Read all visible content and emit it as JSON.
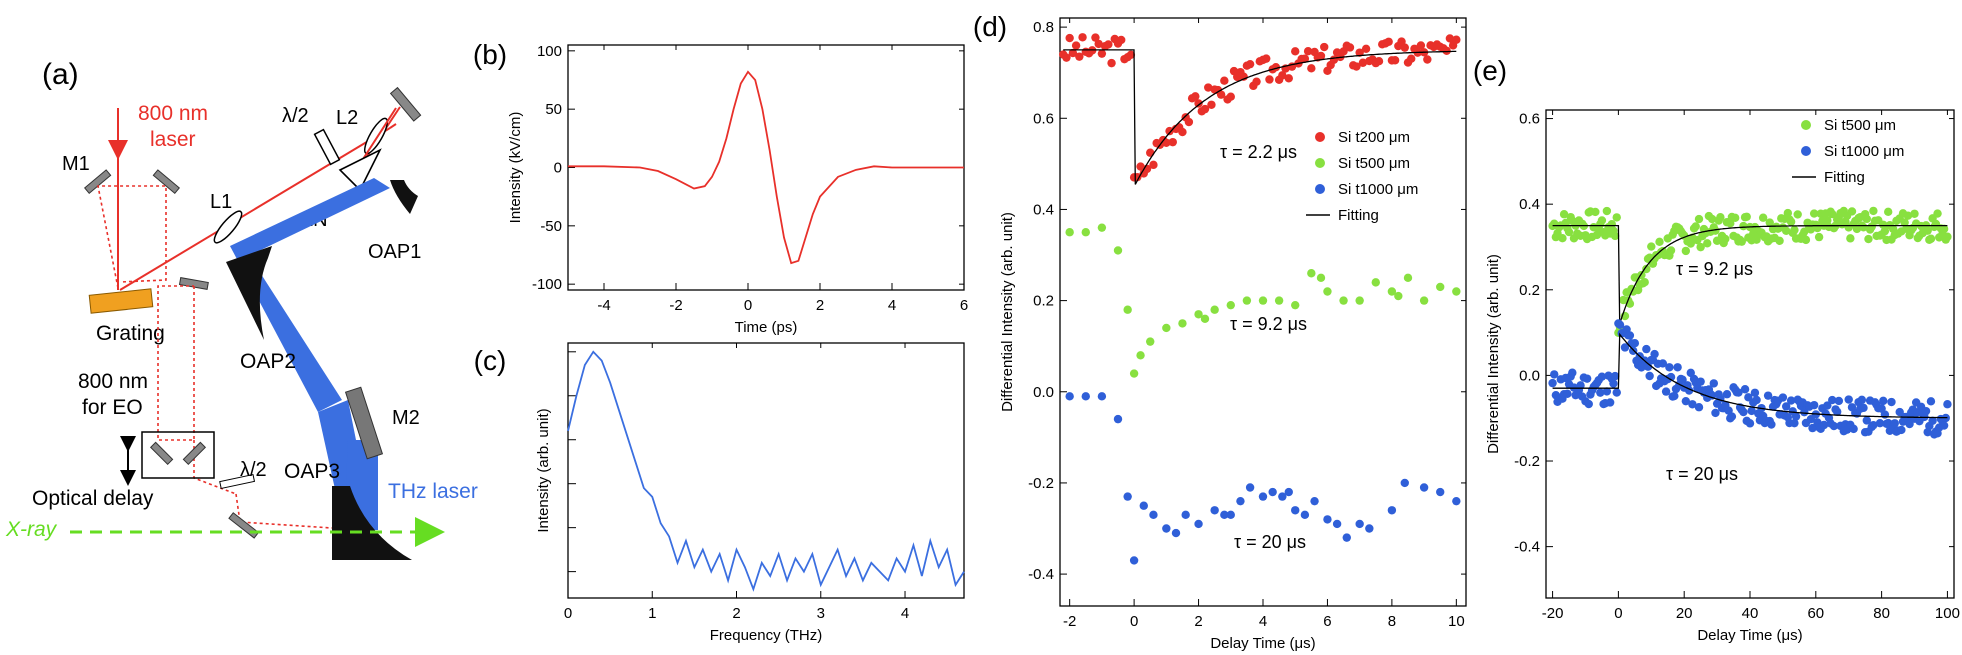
{
  "colors": {
    "laser_red": "#e8302a",
    "thz_blue": "#3b6fe0",
    "xray_green": "#66dd22",
    "si200_red": "#e8302a",
    "si500_green": "#88e040",
    "si1000_blue": "#2f5fd8",
    "fit_black": "#000000"
  },
  "panel_a": {
    "label": "(a)",
    "laser_label_1": "800 nm",
    "laser_label_2": "laser",
    "m1": "M1",
    "l1": "L1",
    "lambda2_top": "λ/2",
    "l2": "L2",
    "ln": "LN",
    "oap1": "OAP1",
    "grating": "Grating",
    "oap2": "OAP2",
    "eo_1": "800 nm",
    "eo_2": "for EO",
    "m2": "M2",
    "lambda2_bottom": "λ/2",
    "oap3": "OAP3",
    "optical_delay": "Optical delay",
    "thz_laser": "THz laser",
    "xray": "X-ray"
  },
  "chart_data": [
    {
      "id": "b",
      "panel_label": "(b)",
      "type": "line",
      "xlabel": "Time  (ps)",
      "ylabel": "Intensity  (kV/cm)",
      "xlim": [
        -5,
        6
      ],
      "ylim": [
        -105,
        105
      ],
      "xticks": [
        -4,
        -2,
        0,
        2,
        4,
        6
      ],
      "yticks": [
        -100,
        -50,
        0,
        50,
        100
      ],
      "series": [
        {
          "color": "#e8302a",
          "x": [
            -5,
            -4,
            -3,
            -2.5,
            -2,
            -1.5,
            -1.2,
            -1,
            -0.8,
            -0.6,
            -0.4,
            -0.2,
            0,
            0.2,
            0.4,
            0.6,
            0.8,
            1,
            1.2,
            1.4,
            1.6,
            1.8,
            2,
            2.5,
            3,
            3.5,
            4,
            5,
            6
          ],
          "y": [
            1,
            1,
            0,
            -3,
            -10,
            -18,
            -16,
            -8,
            5,
            25,
            50,
            72,
            82,
            75,
            50,
            15,
            -25,
            -60,
            -82,
            -80,
            -60,
            -40,
            -25,
            -8,
            -2,
            1,
            0,
            0,
            0
          ]
        }
      ]
    },
    {
      "id": "c",
      "panel_label": "(c)",
      "type": "line",
      "xlabel": "Frequency  (THz)",
      "ylabel": "Intensity  (arb. unit)",
      "xlim": [
        0,
        4.7
      ],
      "yscale": "log",
      "ylim": [
        -5.6,
        0.2
      ],
      "xticks": [
        0,
        1,
        2,
        3,
        4
      ],
      "series": [
        {
          "color": "#3b6fe0",
          "x": [
            0,
            0.1,
            0.2,
            0.3,
            0.4,
            0.5,
            0.6,
            0.7,
            0.8,
            0.9,
            1.0,
            1.1,
            1.2,
            1.3,
            1.4,
            1.5,
            1.6,
            1.7,
            1.8,
            1.9,
            2.0,
            2.1,
            2.2,
            2.3,
            2.4,
            2.5,
            2.6,
            2.7,
            2.8,
            2.9,
            3.0,
            3.1,
            3.2,
            3.3,
            3.4,
            3.5,
            3.6,
            3.7,
            3.8,
            3.9,
            4.0,
            4.1,
            4.2,
            4.3,
            4.4,
            4.5,
            4.6,
            4.7
          ],
          "y": [
            -1.8,
            -1.0,
            -0.3,
            0.0,
            -0.2,
            -0.7,
            -1.3,
            -1.9,
            -2.5,
            -3.1,
            -3.3,
            -3.9,
            -4.2,
            -4.8,
            -4.3,
            -4.9,
            -4.5,
            -5.0,
            -4.6,
            -5.2,
            -4.5,
            -4.9,
            -5.4,
            -4.8,
            -5.1,
            -4.6,
            -5.2,
            -4.7,
            -5.0,
            -4.6,
            -5.3,
            -4.9,
            -4.5,
            -5.1,
            -4.7,
            -5.2,
            -4.8,
            -5.0,
            -5.2,
            -4.7,
            -5.0,
            -4.4,
            -5.1,
            -4.3,
            -4.9,
            -4.5,
            -5.3,
            -5.0
          ]
        }
      ]
    },
    {
      "id": "d",
      "panel_label": "(d)",
      "type": "scatter",
      "xlabel": "Delay Time  (μs)",
      "ylabel": "Differential Intensity  (arb. unit)",
      "xlim": [
        -2.3,
        10.3
      ],
      "ylim": [
        -0.47,
        0.82
      ],
      "xticks": [
        -2,
        0,
        2,
        4,
        6,
        8,
        10
      ],
      "yticks": [
        -0.4,
        -0.2,
        0.0,
        0.2,
        0.4,
        0.6,
        0.8
      ],
      "ytick_labels": [
        "-0.4",
        "-0.2",
        "0.0",
        "0.2",
        "0.4",
        "0.6",
        "0.8"
      ],
      "legend": [
        {
          "name": "Si t200 μm",
          "kind": "dot",
          "color": "#e8302a"
        },
        {
          "name": "Si t500 μm",
          "kind": "dot",
          "color": "#88e040"
        },
        {
          "name": "Si t1000 μm",
          "kind": "dot",
          "color": "#2f5fd8"
        },
        {
          "name": "Fitting",
          "kind": "line",
          "color": "#000000"
        }
      ],
      "annotations": [
        "τ = 2.2 μs",
        "τ = 9.2 μs",
        "τ = 20 μs"
      ],
      "series": [
        {
          "name": "Si t200 μm",
          "color": "#e8302a",
          "kind": "exp",
          "base": 0.75,
          "amp": 0.3,
          "tau": 2.2,
          "x0": -2.2,
          "x1": 10,
          "step": 0.1,
          "noise": 0.03,
          "seed": 3
        },
        {
          "name": "Si t500 μm",
          "color": "#88e040",
          "points": [
            [
              -2.0,
              0.35
            ],
            [
              -1.5,
              0.35
            ],
            [
              -1.0,
              0.36
            ],
            [
              -0.5,
              0.31
            ],
            [
              0,
              0.04
            ],
            [
              0.2,
              0.08
            ],
            [
              0.5,
              0.11
            ],
            [
              1.0,
              0.14
            ],
            [
              1.5,
              0.15
            ],
            [
              2.0,
              0.17
            ],
            [
              2.5,
              0.18
            ],
            [
              3.0,
              0.19
            ],
            [
              3.5,
              0.2
            ],
            [
              4.0,
              0.2
            ],
            [
              4.5,
              0.2
            ],
            [
              5.0,
              0.19
            ],
            [
              5.5,
              0.26
            ],
            [
              6.0,
              0.22
            ],
            [
              6.5,
              0.2
            ],
            [
              7.0,
              0.2
            ],
            [
              7.5,
              0.24
            ],
            [
              8.0,
              0.22
            ],
            [
              8.5,
              0.25
            ],
            [
              9.0,
              0.2
            ],
            [
              9.5,
              0.23
            ],
            [
              10.0,
              0.22
            ],
            [
              -0.2,
              0.18
            ],
            [
              5.8,
              0.25
            ],
            [
              2.2,
              0.16
            ],
            [
              8.2,
              0.21
            ]
          ]
        },
        {
          "name": "Si t1000 μm",
          "color": "#2f5fd8",
          "points": [
            [
              -2.0,
              -0.01
            ],
            [
              -1.5,
              -0.01
            ],
            [
              -1.0,
              -0.01
            ],
            [
              -0.5,
              -0.06
            ],
            [
              -0.2,
              -0.23
            ],
            [
              0,
              -0.37
            ],
            [
              0.3,
              -0.25
            ],
            [
              0.6,
              -0.27
            ],
            [
              1.0,
              -0.3
            ],
            [
              1.3,
              -0.31
            ],
            [
              1.6,
              -0.27
            ],
            [
              2.0,
              -0.29
            ],
            [
              2.5,
              -0.26
            ],
            [
              3.0,
              -0.27
            ],
            [
              3.3,
              -0.24
            ],
            [
              3.6,
              -0.21
            ],
            [
              4.0,
              -0.23
            ],
            [
              4.3,
              -0.22
            ],
            [
              4.6,
              -0.23
            ],
            [
              5.0,
              -0.26
            ],
            [
              5.3,
              -0.27
            ],
            [
              5.6,
              -0.24
            ],
            [
              6.0,
              -0.28
            ],
            [
              6.3,
              -0.29
            ],
            [
              6.6,
              -0.32
            ],
            [
              7.0,
              -0.29
            ],
            [
              7.3,
              -0.3
            ],
            [
              8.0,
              -0.26
            ],
            [
              8.4,
              -0.2
            ],
            [
              9.0,
              -0.21
            ],
            [
              9.5,
              -0.22
            ],
            [
              10.0,
              -0.24
            ],
            [
              4.8,
              -0.22
            ],
            [
              2.8,
              -0.27
            ]
          ]
        }
      ]
    },
    {
      "id": "e",
      "panel_label": "(e)",
      "type": "scatter",
      "xlabel": "Delay Time  (μs)",
      "ylabel": "Differential Intensity  (arb. unit)",
      "xlim": [
        -22,
        102
      ],
      "ylim": [
        -0.52,
        0.62
      ],
      "xticks": [
        -20,
        0,
        20,
        40,
        60,
        80,
        100
      ],
      "yticks": [
        -0.4,
        -0.2,
        0.0,
        0.2,
        0.4,
        0.6
      ],
      "ytick_labels": [
        "-0.4",
        "-0.2",
        "0.0",
        "0.2",
        "0.4",
        "0.6"
      ],
      "legend": [
        {
          "name": "Si t500 μm",
          "kind": "dot",
          "color": "#88e040"
        },
        {
          "name": "Si t1000 μm",
          "kind": "dot",
          "color": "#2f5fd8"
        },
        {
          "name": "Fitting",
          "kind": "line",
          "color": "#000000"
        }
      ],
      "annotations": [
        "τ = 9.2 μs",
        "τ = 20 μs"
      ],
      "series": [
        {
          "name": "Si t500 μm",
          "color": "#88e040",
          "kind": "exp",
          "base": 0.35,
          "amp": 0.24,
          "tau": 9.2,
          "x0": -20,
          "x1": 100,
          "step": 0.5,
          "noise": 0.035,
          "seed": 7
        },
        {
          "name": "Si t1000 μm",
          "color": "#2f5fd8",
          "kind": "exp",
          "base": -0.1,
          "amp": -0.2,
          "tau": 20,
          "pre": -0.03,
          "x0": -20,
          "x1": 100,
          "step": 0.5,
          "noise": 0.04,
          "seed": 11
        }
      ]
    }
  ]
}
